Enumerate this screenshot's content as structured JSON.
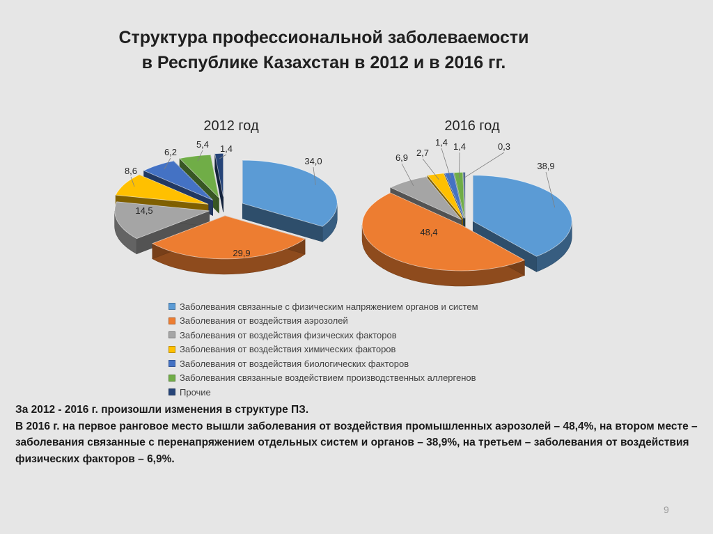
{
  "title": {
    "line1": "Структура  профессиональной заболеваемости",
    "line2": "в Республике Казахстан в 2012 и в 2016 гг."
  },
  "colors": {
    "blue": "#5b9bd5",
    "orange": "#ed7d31",
    "gray": "#a5a5a5",
    "yellow": "#ffc000",
    "indigo": "#4472c4",
    "green": "#70ad47",
    "navy": "#264478"
  },
  "legend": [
    {
      "label": "Заболевания связанные с физическим напряжением органов и систем",
      "color": "#5b9bd5"
    },
    {
      "label": "Заболевания от воздействия аэрозолей",
      "color": "#ed7d31"
    },
    {
      "label": "Заболевания от воздействия физических факторов",
      "color": "#a5a5a5"
    },
    {
      "label": "Заболевания от воздействия химических факторов",
      "color": "#ffc000"
    },
    {
      "label": "Заболевания от воздействия биологических факторов",
      "color": "#4472c4"
    },
    {
      "label": "Заболевания связанные воздействием производственных аллергенов",
      "color": "#70ad47"
    },
    {
      "label": "Прочие",
      "color": "#264478"
    }
  ],
  "chart_data": [
    {
      "type": "pie",
      "title": "2012 год",
      "categories": [
        "Заболевания связанные с физическим напряжением органов и систем",
        "Заболевания от воздействия аэрозолей",
        "Заболевания от воздействия физических факторов",
        "Заболевания от воздействия химических факторов",
        "Заболевания от воздействия биологических факторов",
        "Заболевания связанные воздействием производственных аллергенов",
        "Прочие"
      ],
      "values": [
        34.0,
        29.9,
        14.5,
        8.6,
        6.2,
        5.4,
        1.4
      ],
      "value_labels": [
        "34,0",
        "29,9",
        "14,5",
        "8,6",
        "6,2",
        "5,4",
        "1,4"
      ],
      "style": "3d-exploded"
    },
    {
      "type": "pie",
      "title": "2016 год",
      "categories": [
        "Заболевания связанные с физическим напряжением органов и систем",
        "Заболевания от воздействия аэрозолей",
        "Заболевания от воздействия физических факторов",
        "Заболевания от воздействия химических факторов",
        "Заболевания от воздействия биологических факторов",
        "Заболевания связанные воздействием производственных аллергенов",
        "Прочие"
      ],
      "values": [
        38.9,
        48.4,
        6.9,
        2.7,
        1.4,
        1.4,
        0.3
      ],
      "value_labels": [
        "38,9",
        "48,4",
        "6,9",
        "2,7",
        "1,4",
        "1,4",
        "0,3"
      ],
      "style": "3d-exploded"
    }
  ],
  "notes": {
    "line1": "За 2012 - 2016 г. произошли изменения в структуре ПЗ.",
    "line2": "В 2016 г. на первое ранговое место вышли  заболевания от воздействия промышленных аэрозолей – 48,4%, на втором месте – заболевания связанные с  перенапряжением отдельных систем и органов –  38,9%, на третьем – заболевания от воздействия физических факторов – 6,9%."
  },
  "page_number": "9"
}
